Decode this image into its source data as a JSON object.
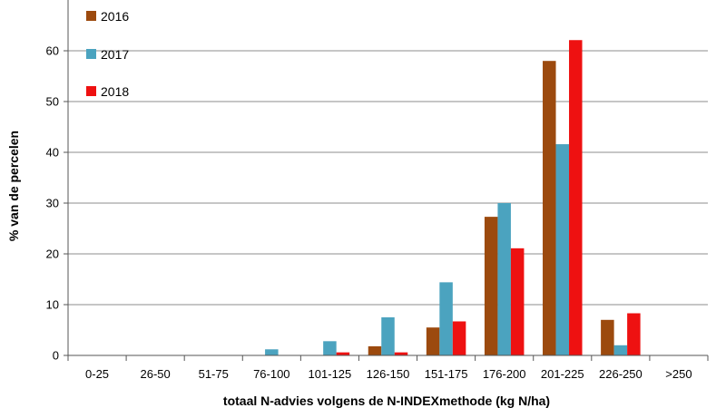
{
  "chart_data": {
    "type": "bar",
    "title": "",
    "xlabel": "totaal N-advies volgens de N-INDEXmethode (kg N/ha)",
    "ylabel": "% van de percelen",
    "ylim": [
      0,
      70
    ],
    "yticks": [
      0,
      10,
      20,
      30,
      40,
      50,
      60
    ],
    "grid": true,
    "legend_position": "top-left",
    "categories": [
      "0-25",
      "26-50",
      "51-75",
      "76-100",
      "101-125",
      "126-150",
      "151-175",
      "176-200",
      "201-225",
      "226-250",
      ">250"
    ],
    "series": [
      {
        "name": "2016",
        "color": "#9C4A0E",
        "values": [
          0,
          0,
          0,
          0,
          0,
          1.8,
          5.5,
          27.3,
          58.0,
          7.0,
          0
        ]
      },
      {
        "name": "2017",
        "color": "#4BA3BF",
        "values": [
          0,
          0,
          0,
          1.2,
          2.8,
          7.5,
          14.4,
          30.0,
          41.6,
          2.0,
          0
        ]
      },
      {
        "name": "2018",
        "color": "#EE1111",
        "values": [
          0,
          0,
          0,
          0,
          0.6,
          0.6,
          6.7,
          21.1,
          62.1,
          8.3,
          0
        ]
      }
    ]
  }
}
